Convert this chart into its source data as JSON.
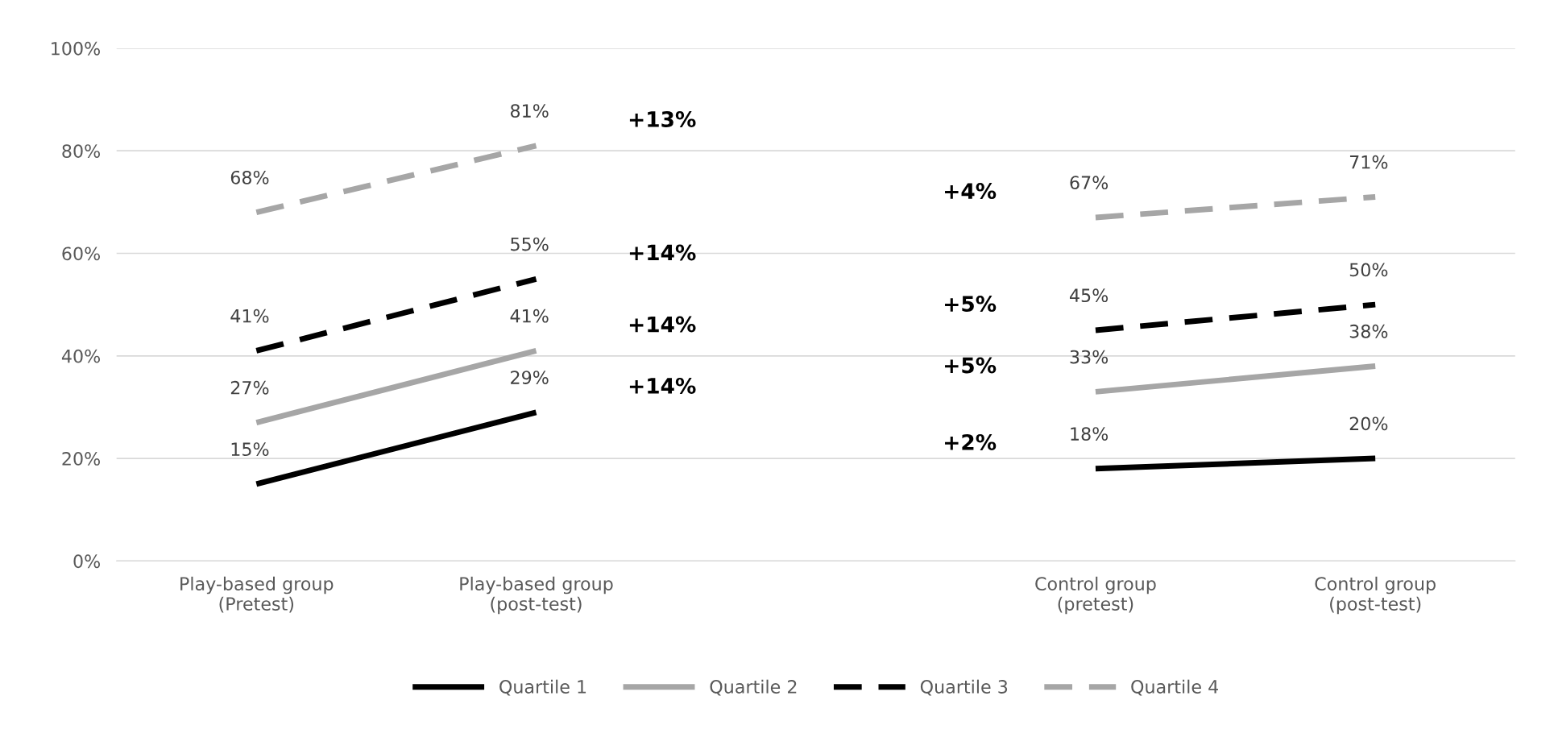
{
  "chart_data": {
    "type": "line",
    "categories": [
      "Play-based group (Pretest)",
      "Play-based group (post-test)",
      null,
      "Control group (pretest)",
      "Control group (post-test)"
    ],
    "series": [
      {
        "name": "Quartile 1",
        "color": "#000000",
        "line_style": "solid",
        "values": [
          15,
          29,
          null,
          18,
          20
        ],
        "value_labels": [
          "15%",
          "29%",
          null,
          "18%",
          "20%"
        ]
      },
      {
        "name": "Quartile 2",
        "color": "#a6a6a6",
        "line_style": "solid",
        "values": [
          27,
          41,
          null,
          33,
          38
        ],
        "value_labels": [
          "27%",
          "41%",
          null,
          "33%",
          "38%"
        ]
      },
      {
        "name": "Quartile 3",
        "color": "#000000",
        "line_style": "dashed",
        "values": [
          41,
          55,
          null,
          45,
          50
        ],
        "value_labels": [
          "41%",
          "55%",
          null,
          "45%",
          "50%"
        ]
      },
      {
        "name": "Quartile 4",
        "color": "#a6a6a6",
        "line_style": "dashed",
        "values": [
          68,
          81,
          null,
          67,
          71
        ],
        "value_labels": [
          "68%",
          "81%",
          null,
          "67%",
          "71%"
        ]
      }
    ],
    "ylim": [
      0,
      100
    ],
    "yticks": [
      {
        "value": 0,
        "label": "0%"
      },
      {
        "value": 20,
        "label": "20%"
      },
      {
        "value": 40,
        "label": "40%"
      },
      {
        "value": 60,
        "label": "60%"
      },
      {
        "value": 80,
        "label": "80%"
      },
      {
        "value": 100,
        "label": "100%"
      }
    ],
    "grid": "y",
    "legend": "bottom",
    "marker": "none",
    "annotations": [
      "+13%",
      "+14%",
      "+14%",
      "+14%",
      "+4%",
      "+5%",
      "+5%",
      "+2%"
    ]
  }
}
